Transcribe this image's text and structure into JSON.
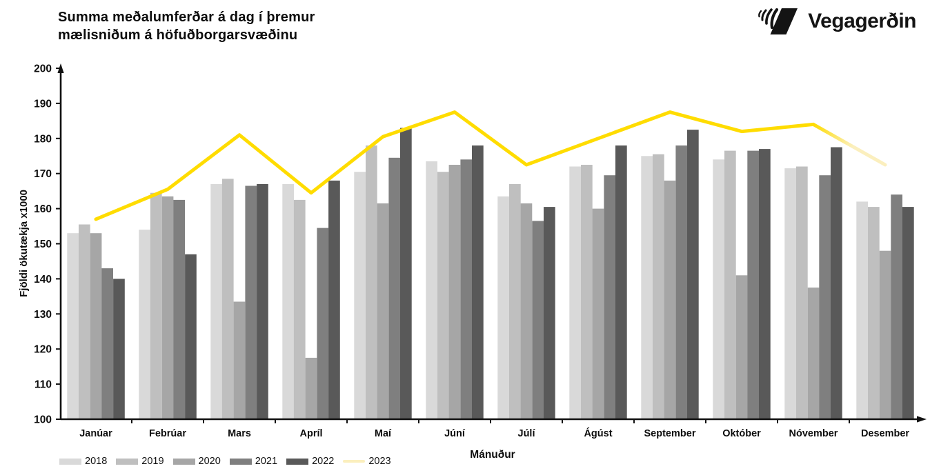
{
  "header": {
    "title_line1": "Summa meðalumferðar á dag í þremur",
    "title_line2": "mælisniðum á höfuðborgarsvæðinu",
    "logo_text": "Vegagerðin"
  },
  "chart_data": {
    "type": "bar",
    "title": "Summa meðalumferðar á dag í þremur mælisniðum á höfuðborgarsvæðinu",
    "categories": [
      "Janúar",
      "Febrúar",
      "Mars",
      "Apríl",
      "Maí",
      "Júní",
      "Júlí",
      "Ágúst",
      "September",
      "Október",
      "Nóvember",
      "Desember"
    ],
    "series": [
      {
        "name": "2018",
        "type": "bar",
        "color": "#D9D9D9",
        "values": [
          153,
          154,
          167,
          167,
          170.5,
          173.5,
          163.5,
          172,
          175,
          174,
          171.5,
          162
        ]
      },
      {
        "name": "2019",
        "type": "bar",
        "color": "#BFBFBF",
        "values": [
          155.5,
          164.5,
          168.5,
          162.5,
          178,
          170.5,
          167,
          172.5,
          175.5,
          176.5,
          172,
          160.5
        ]
      },
      {
        "name": "2020",
        "type": "bar",
        "color": "#A6A6A6",
        "values": [
          153,
          163.5,
          133.5,
          117.5,
          161.5,
          172.5,
          161.5,
          160,
          168,
          141,
          137.5,
          148
        ]
      },
      {
        "name": "2021",
        "type": "bar",
        "color": "#7F7F7F",
        "values": [
          143,
          162.5,
          166.5,
          154.5,
          174.5,
          174,
          156.5,
          169.5,
          178,
          176.5,
          169.5,
          164
        ]
      },
      {
        "name": "2022",
        "type": "bar",
        "color": "#595959",
        "values": [
          140,
          147,
          167,
          168,
          183,
          178,
          160.5,
          178,
          182.5,
          177,
          177.5,
          160.5
        ]
      },
      {
        "name": "2023",
        "type": "line",
        "color": "#FFDC00",
        "faded_color": "#FBEFBE",
        "faded_from_index": 10,
        "values": [
          157,
          165.5,
          181,
          164.5,
          180.5,
          187.5,
          172.5,
          180,
          187.5,
          182,
          184,
          172.5
        ]
      }
    ],
    "xlabel": "Mánuður",
    "ylabel": "Fjöldi ökutækja x1000",
    "ylim": [
      100,
      200
    ],
    "yticks": [
      100,
      110,
      120,
      130,
      140,
      150,
      160,
      170,
      180,
      190,
      200
    ],
    "grid": false,
    "legend_position": "bottom-left",
    "axis_color": "#111111"
  }
}
